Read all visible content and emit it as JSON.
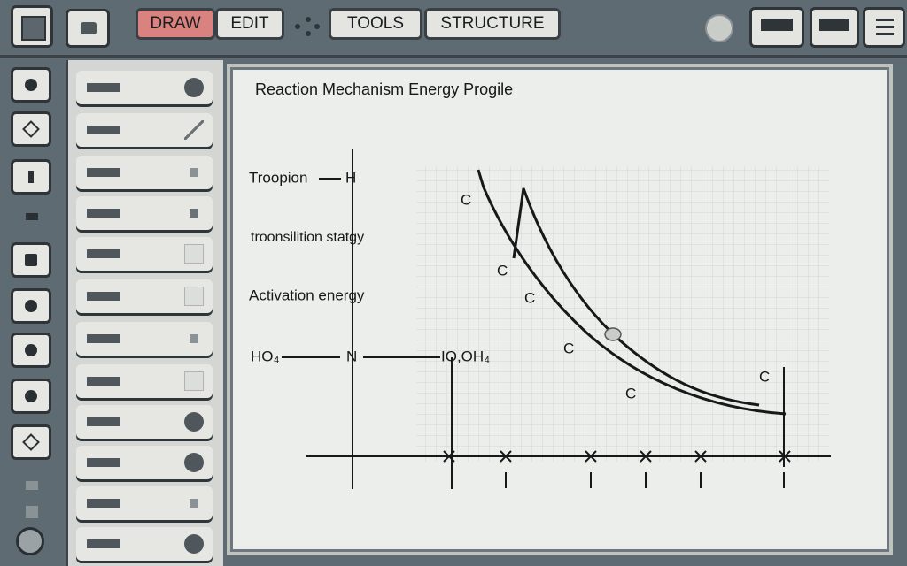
{
  "toolbar": {
    "tabs": [
      "DRAW",
      "EDIT",
      "TOOLS",
      "STRUCTURE"
    ]
  },
  "canvas": {
    "title": "Reaction Mechanism Energy Progile",
    "labels": {
      "troopion": "Troopion",
      "h": "H",
      "transition": "troonsilition statgy",
      "activation": "Activation energy",
      "left_species": "HO₄",
      "n": "N",
      "right_species": "IO,OH₄"
    },
    "atom_labels": [
      "C",
      "C",
      "C",
      "C",
      "C",
      "C"
    ]
  }
}
